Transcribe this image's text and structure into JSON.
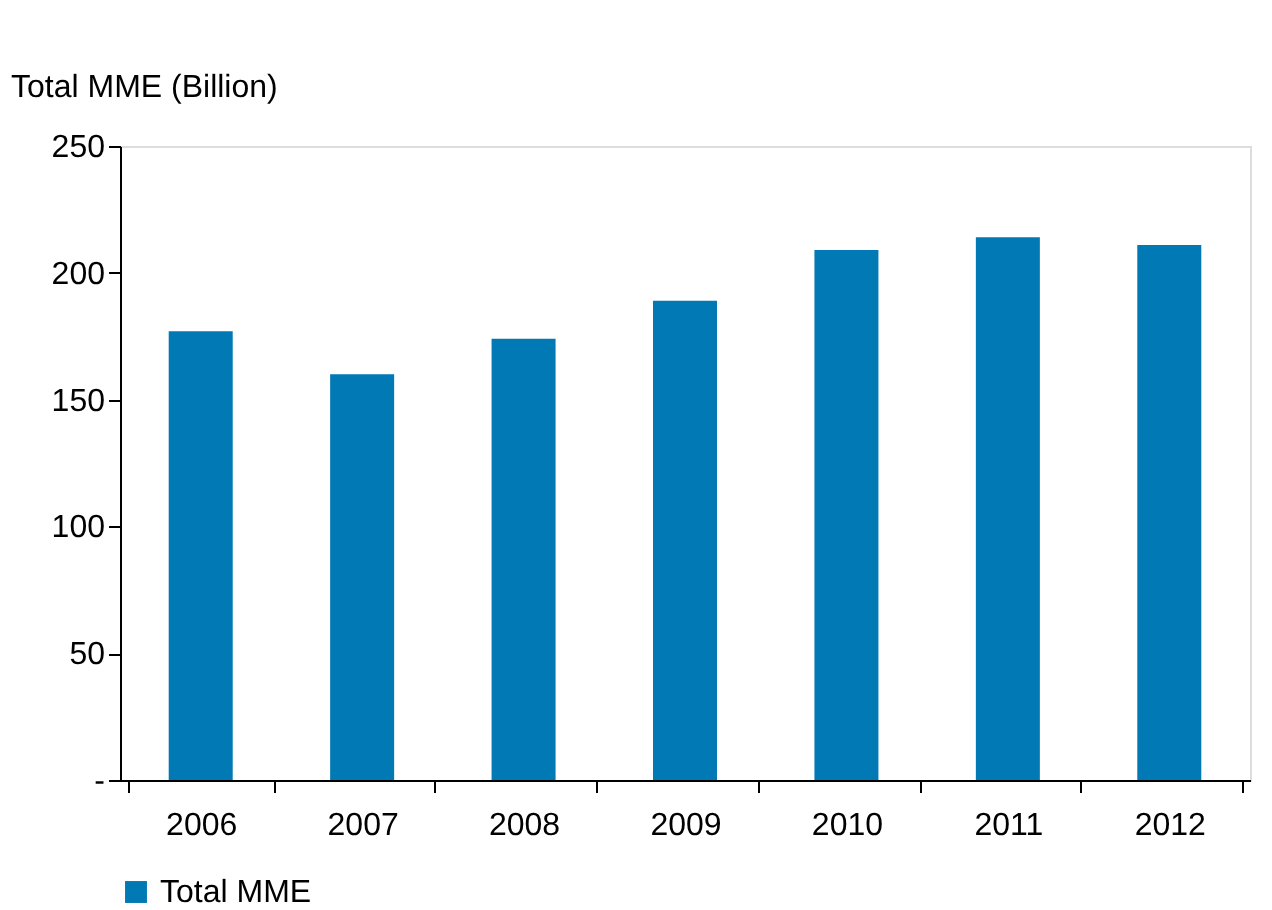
{
  "chart_data": {
    "type": "bar",
    "ylabel": "Total MME (Billion)",
    "categories": [
      "2006",
      "2007",
      "2008",
      "2009",
      "2010",
      "2011",
      "2012"
    ],
    "series": [
      {
        "name": "Total MME",
        "color": "#0079b4",
        "values": [
          177,
          160,
          174,
          189,
          209,
          214,
          211
        ]
      }
    ],
    "ylim": [
      0,
      250
    ],
    "yticks": [
      {
        "value": 0,
        "label": "-"
      },
      50,
      100,
      150,
      200,
      250
    ],
    "grid": false,
    "legend": "bottom"
  }
}
